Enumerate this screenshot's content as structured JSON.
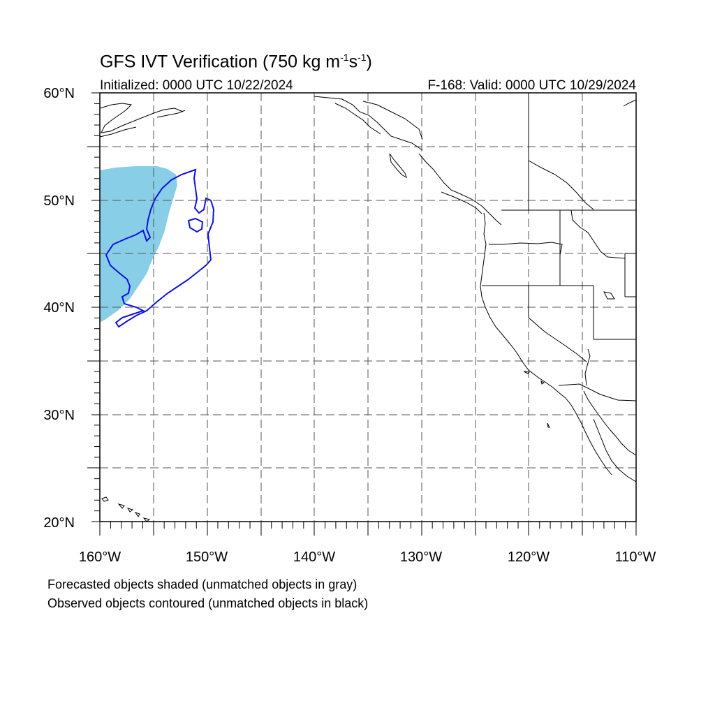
{
  "title": {
    "prefix": "GFS IVT Verification (750 kg m",
    "exp1": "-1",
    "mid": "s",
    "exp2": "-1",
    "suffix": ")"
  },
  "initialized": "Initialized: 0000 UTC 10/22/2024",
  "valid": "F-168: Valid: 0000 UTC 10/29/2024",
  "lat_labels": [
    "60°N",
    "50°N",
    "40°N",
    "30°N",
    "20°N"
  ],
  "lon_labels": [
    "160°W",
    "150°W",
    "140°W",
    "130°W",
    "120°W",
    "110°W"
  ],
  "footer": {
    "line1": "Forecasted objects shaded (unmatched objects in gray)",
    "line2": "Observed objects contoured (unmatched objects in black)"
  },
  "map": {
    "lon_range": [
      -160,
      -110
    ],
    "lat_range": [
      20,
      60
    ],
    "gridline_spacing_deg": 5,
    "gridline_style": "dashed",
    "forecast_object_color": "#87CEE6",
    "observed_object_color": "#1010E0",
    "coastline_color": "#000000"
  }
}
